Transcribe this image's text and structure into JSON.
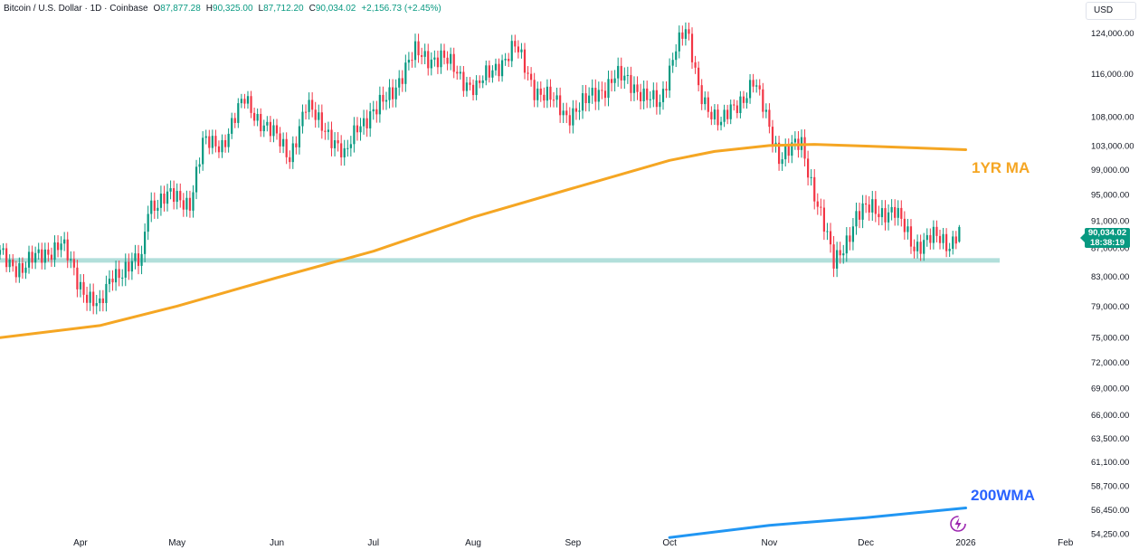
{
  "header": {
    "symbol": "Bitcoin / U.S. Dollar · 1D · Coinbase",
    "open_label": "O",
    "open": "87,877.28",
    "high_label": "H",
    "high": "90,325.00",
    "low_label": "L",
    "low": "87,712.20",
    "close_label": "C",
    "close": "90,034.02",
    "change": "+2,156.73 (+2.45%)"
  },
  "currency_button": "USD",
  "current_price": {
    "value": "90,034.02",
    "countdown": "18:38:19"
  },
  "annotations": {
    "ma_1yr": "1YR MA",
    "wma_200": "200WMA"
  },
  "colors": {
    "up": "#089981",
    "down": "#f23645",
    "ma_1yr": "#f5a623",
    "wma_200": "#2196f3",
    "support": "#b2dfdb"
  },
  "chart_data": {
    "type": "candlestick",
    "y_scale": "log",
    "ylim": [
      52800,
      131000
    ],
    "y_ticks": [
      "124,000.00",
      "116,000.00",
      "108,000.00",
      "103,000.00",
      "99,000.00",
      "95,000.00",
      "91,000.00",
      "87,000.00",
      "83,000.00",
      "79,000.00",
      "75,000.00",
      "72,000.00",
      "69,000.00",
      "66,000.00",
      "63,500.00",
      "61,100.00",
      "58,700.00",
      "56,450.00",
      "54,250.00"
    ],
    "x_range": [
      "2025-03-07",
      "2026-02-05"
    ],
    "x_ticks": [
      {
        "label": "Apr",
        "date": "2025-04-01"
      },
      {
        "label": "May",
        "date": "2025-05-01"
      },
      {
        "label": "Jun",
        "date": "2025-06-01"
      },
      {
        "label": "Jul",
        "date": "2025-07-01"
      },
      {
        "label": "Aug",
        "date": "2025-08-01"
      },
      {
        "label": "Sep",
        "date": "2025-09-01"
      },
      {
        "label": "Oct",
        "date": "2025-10-01"
      },
      {
        "label": "Nov",
        "date": "2025-11-01"
      },
      {
        "label": "Dec",
        "date": "2025-12-01"
      },
      {
        "label": "2026",
        "date": "2026-01-01"
      },
      {
        "label": "Feb",
        "date": "2026-02-01"
      }
    ],
    "support_level": 85200,
    "candle_closes": [
      {
        "date": "2025-03-07",
        "close": 86000
      },
      {
        "date": "2025-03-14",
        "close": 84000
      },
      {
        "date": "2025-03-21",
        "close": 86500
      },
      {
        "date": "2025-03-26",
        "close": 87500
      },
      {
        "date": "2025-03-31",
        "close": 82500
      },
      {
        "date": "2025-04-07",
        "close": 78500
      },
      {
        "date": "2025-04-11",
        "close": 83500
      },
      {
        "date": "2025-04-20",
        "close": 85000
      },
      {
        "date": "2025-04-22",
        "close": 93500
      },
      {
        "date": "2025-04-28",
        "close": 94500
      },
      {
        "date": "2025-05-05",
        "close": 94000
      },
      {
        "date": "2025-05-09",
        "close": 103000
      },
      {
        "date": "2025-05-15",
        "close": 103500
      },
      {
        "date": "2025-05-22",
        "close": 111000
      },
      {
        "date": "2025-05-29",
        "close": 106000
      },
      {
        "date": "2025-06-05",
        "close": 101500
      },
      {
        "date": "2025-06-10",
        "close": 109500
      },
      {
        "date": "2025-06-16",
        "close": 106500
      },
      {
        "date": "2025-06-22",
        "close": 100500
      },
      {
        "date": "2025-06-26",
        "close": 107000
      },
      {
        "date": "2025-07-02",
        "close": 108800
      },
      {
        "date": "2025-07-10",
        "close": 116000
      },
      {
        "date": "2025-07-14",
        "close": 119800
      },
      {
        "date": "2025-07-22",
        "close": 119000
      },
      {
        "date": "2025-08-02",
        "close": 113000
      },
      {
        "date": "2025-08-08",
        "close": 117500
      },
      {
        "date": "2025-08-14",
        "close": 121000
      },
      {
        "date": "2025-08-20",
        "close": 113500
      },
      {
        "date": "2025-08-30",
        "close": 108500
      },
      {
        "date": "2025-09-05",
        "close": 110500
      },
      {
        "date": "2025-09-14",
        "close": 115500
      },
      {
        "date": "2025-09-22",
        "close": 113000
      },
      {
        "date": "2025-09-28",
        "close": 109500
      },
      {
        "date": "2025-10-03",
        "close": 122500
      },
      {
        "date": "2025-10-06",
        "close": 124500
      },
      {
        "date": "2025-10-10",
        "close": 113000
      },
      {
        "date": "2025-10-17",
        "close": 106500
      },
      {
        "date": "2025-10-27",
        "close": 114500
      },
      {
        "date": "2025-11-04",
        "close": 101500
      },
      {
        "date": "2025-11-11",
        "close": 103000
      },
      {
        "date": "2025-11-17",
        "close": 92000
      },
      {
        "date": "2025-11-21",
        "close": 84500
      },
      {
        "date": "2025-11-28",
        "close": 91500
      },
      {
        "date": "2025-12-03",
        "close": 93000
      },
      {
        "date": "2025-12-10",
        "close": 92000
      },
      {
        "date": "2025-12-16",
        "close": 87500
      },
      {
        "date": "2025-12-22",
        "close": 88300
      },
      {
        "date": "2025-12-27",
        "close": 87700
      },
      {
        "date": "2025-12-30",
        "close": 90034
      }
    ],
    "series": [
      {
        "name": "1YR MA",
        "points": [
          {
            "date": "2025-03-07",
            "value": 75000
          },
          {
            "date": "2025-04-07",
            "value": 76500
          },
          {
            "date": "2025-05-01",
            "value": 79000
          },
          {
            "date": "2025-06-01",
            "value": 82800
          },
          {
            "date": "2025-07-01",
            "value": 86500
          },
          {
            "date": "2025-08-01",
            "value": 91500
          },
          {
            "date": "2025-09-01",
            "value": 96000
          },
          {
            "date": "2025-10-01",
            "value": 100500
          },
          {
            "date": "2025-10-15",
            "value": 102000
          },
          {
            "date": "2025-11-01",
            "value": 103000
          },
          {
            "date": "2025-11-15",
            "value": 103200
          },
          {
            "date": "2025-12-01",
            "value": 102900
          },
          {
            "date": "2026-01-01",
            "value": 102300
          }
        ]
      },
      {
        "name": "200WMA",
        "points": [
          {
            "date": "2025-10-01",
            "value": 53900
          },
          {
            "date": "2025-11-01",
            "value": 55000
          },
          {
            "date": "2025-12-01",
            "value": 55700
          },
          {
            "date": "2026-01-01",
            "value": 56600
          }
        ]
      }
    ]
  }
}
